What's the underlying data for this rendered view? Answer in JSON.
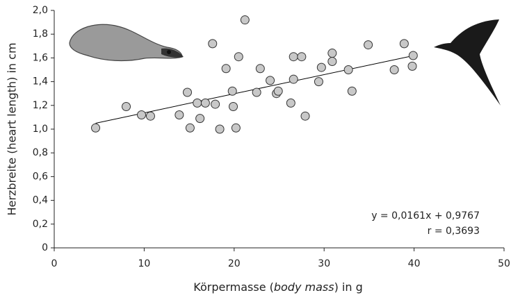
{
  "chart_data": {
    "type": "scatter",
    "y_label": "Herzbreite (heart length) in cm",
    "x_label": [
      "Körpermasse (",
      "body mass",
      ") in g"
    ],
    "annotations": [
      "y = 0,0161x + 0,9767",
      "r = 0,3693"
    ],
    "xlim": [
      0,
      50
    ],
    "xticks": [
      0,
      10,
      20,
      30,
      40,
      50
    ],
    "ylim": [
      0,
      2.0
    ],
    "yticks": [
      {
        "value": 0,
        "label": "0"
      },
      {
        "value": 0.2,
        "label": "0,2"
      },
      {
        "value": 0.4,
        "label": "0,4"
      },
      {
        "value": 0.6,
        "label": "0,6"
      },
      {
        "value": 0.8,
        "label": "0,8"
      },
      {
        "value": 1.0,
        "label": "1,0"
      },
      {
        "value": 1.2,
        "label": "1,2"
      },
      {
        "value": 1.4,
        "label": "1,4"
      },
      {
        "value": 1.6,
        "label": "1,6"
      },
      {
        "value": 1.8,
        "label": "1,8"
      },
      {
        "value": 2.0,
        "label": "2,0"
      }
    ],
    "grid": false,
    "series": [
      {
        "color": "#c8c8c8",
        "x": [
          4.6,
          8.0,
          9.7,
          10.7,
          13.9,
          14.8,
          15.1,
          15.9,
          16.2,
          16.8,
          17.6,
          17.9,
          18.4,
          19.1,
          19.8,
          19.9,
          20.2,
          20.5,
          21.2,
          22.5,
          22.9,
          24.0,
          24.7,
          24.9,
          26.3,
          26.6,
          26.6,
          27.5,
          27.9,
          29.4,
          29.7,
          30.9,
          30.9,
          32.7,
          33.1,
          34.9,
          37.8,
          38.9,
          39.8,
          39.9
        ],
        "values": [
          1.01,
          1.19,
          1.12,
          1.11,
          1.12,
          1.31,
          1.01,
          1.22,
          1.09,
          1.22,
          1.72,
          1.21,
          1.0,
          1.51,
          1.32,
          1.19,
          1.01,
          1.61,
          1.92,
          1.31,
          1.51,
          1.41,
          1.3,
          1.32,
          1.22,
          1.42,
          1.61,
          1.61,
          1.11,
          1.4,
          1.52,
          1.64,
          1.57,
          1.5,
          1.32,
          1.71,
          1.5,
          1.72,
          1.53,
          1.62
        ]
      }
    ],
    "fit_line": {
      "color": "#000000",
      "x": [
        4.6,
        40.0
      ],
      "values": [
        1.05,
        1.62
      ]
    }
  }
}
